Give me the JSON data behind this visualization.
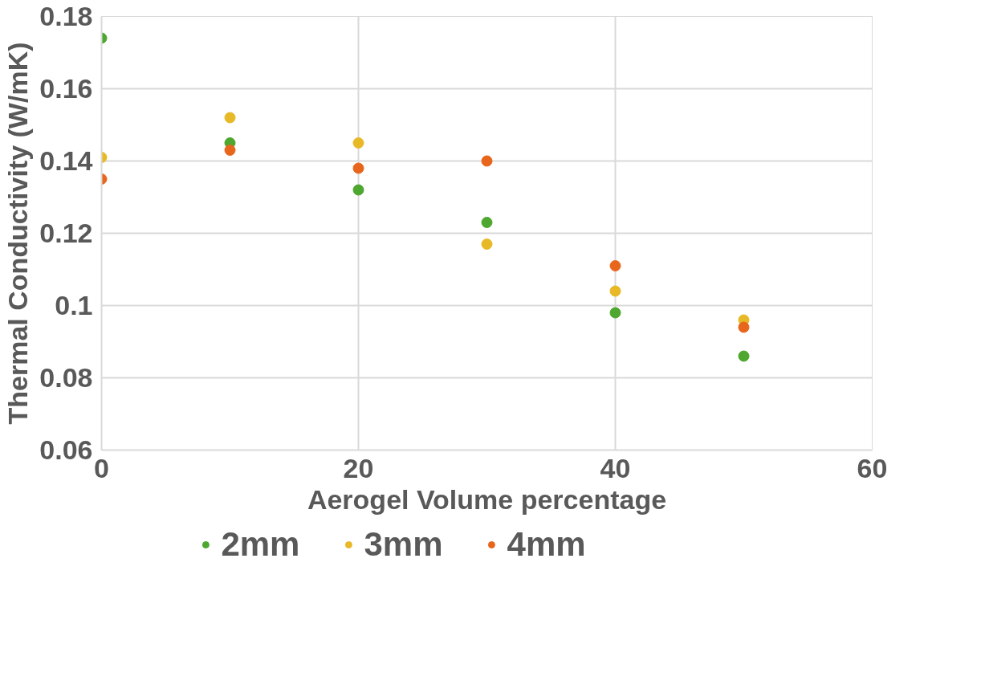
{
  "chart_data": {
    "type": "scatter",
    "xlabel": "Aerogel Volume percentage",
    "ylabel": "Thermal Conductivity (W/mK)",
    "x": [
      0,
      10,
      20,
      30,
      40,
      50
    ],
    "series": [
      {
        "name": "2mm",
        "color": "#4ea72e",
        "values": [
          0.174,
          0.145,
          0.132,
          0.123,
          0.098,
          0.086
        ]
      },
      {
        "name": "3mm",
        "color": "#e8b927",
        "values": [
          0.141,
          0.152,
          0.145,
          0.117,
          0.104,
          0.096
        ]
      },
      {
        "name": "4mm",
        "color": "#e8661c",
        "values": [
          0.135,
          0.143,
          0.138,
          0.14,
          0.111,
          0.094
        ]
      }
    ],
    "xlim": [
      0,
      60
    ],
    "xticks": [
      0,
      20,
      40,
      60
    ],
    "ylim": [
      0.06,
      0.18
    ],
    "yticks": [
      0.06,
      0.08,
      {
        "value": 0.1,
        "label": "0.1"
      },
      0.12,
      0.14,
      0.16,
      0.18
    ],
    "grid": true,
    "legend": "bottom",
    "marker": "circle"
  }
}
